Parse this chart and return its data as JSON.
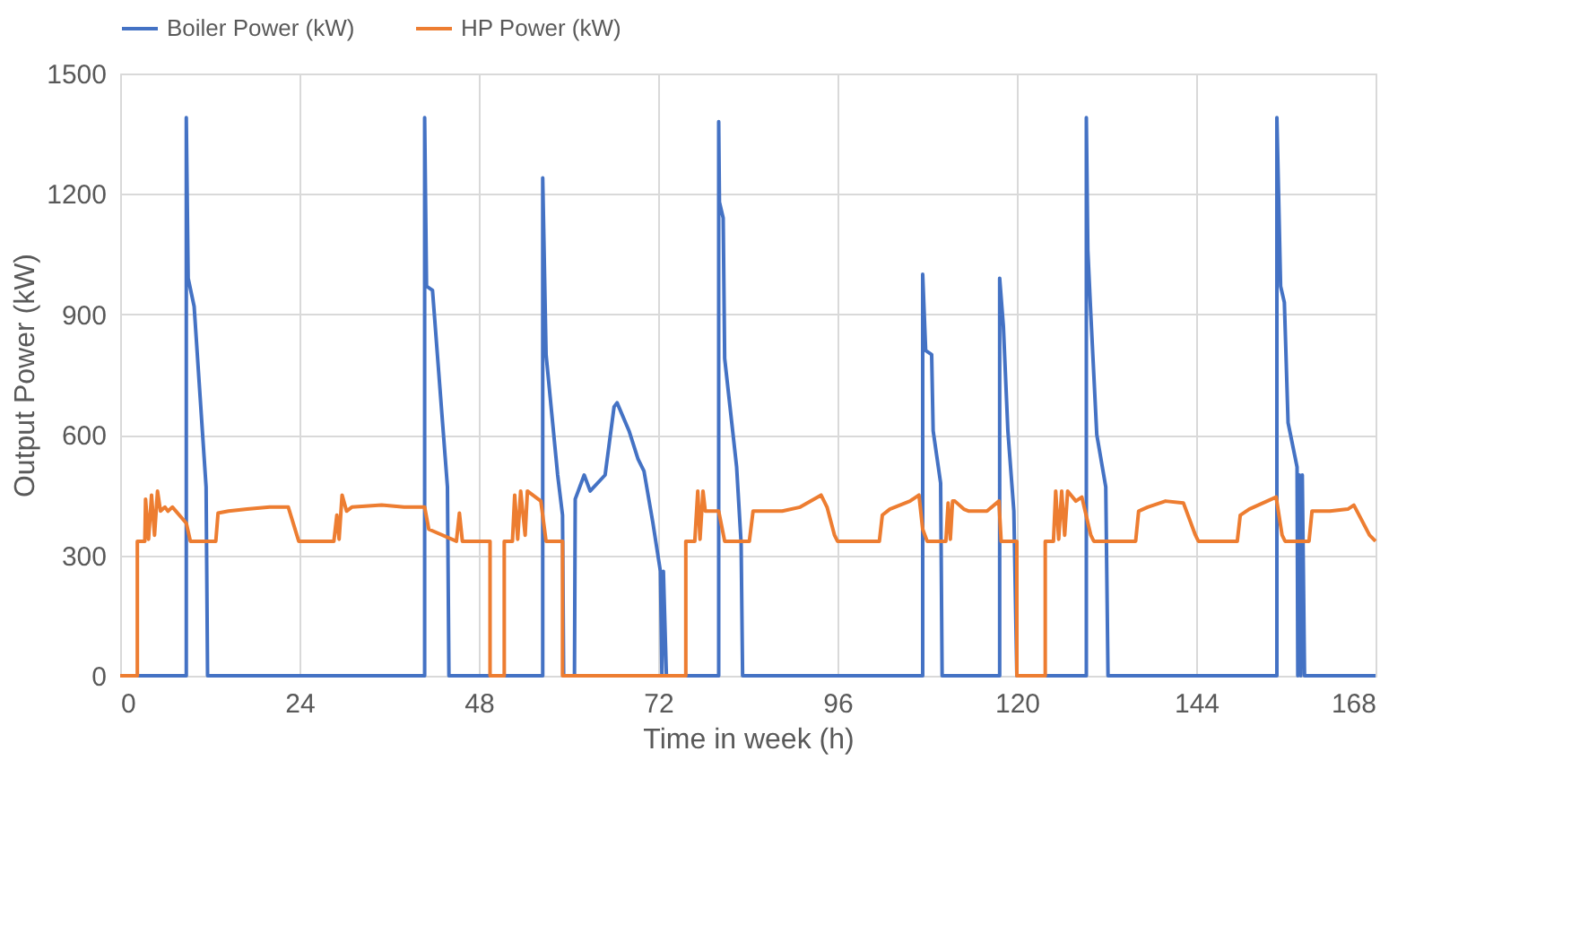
{
  "chart_data": {
    "type": "line",
    "xlabel": "Time in week (h)",
    "ylabel": "Output Power (kW)",
    "xlim": [
      0,
      168
    ],
    "xticks": [
      0,
      24,
      48,
      72,
      96,
      120,
      144,
      168
    ],
    "ylim": [
      0,
      1500
    ],
    "yticks": [
      0,
      300,
      600,
      900,
      1200,
      1500
    ],
    "grid": true,
    "legend": "top",
    "line_style": "solid",
    "marker": "none",
    "series": [
      {
        "name": "Boiler Power (kW)",
        "color": "#4472c4",
        "x": [
          0,
          8.85,
          8.85,
          9.1,
          9.9,
          11.5,
          11.7,
          40.75,
          40.75,
          41.0,
          41.8,
          43.8,
          44.0,
          56.55,
          56.55,
          57.0,
          58.55,
          59.2,
          59.35,
          60.8,
          60.9,
          62.1,
          62.9,
          64.9,
          66.1,
          66.5,
          68.1,
          69.3,
          70.1,
          71.3,
          72.3,
          72.5,
          72.7,
          73.1,
          80.1,
          80.1,
          80.2,
          80.7,
          80.9,
          82.5,
          83.1,
          83.3,
          107.4,
          107.4,
          107.8,
          108.6,
          108.8,
          109.8,
          110.0,
          117.7,
          117.7,
          118.2,
          118.8,
          119.6,
          120.0,
          129.3,
          129.3,
          129.5,
          129.9,
          130.7,
          131.9,
          132.2,
          154.8,
          154.8,
          155.3,
          155.8,
          156.3,
          157.5,
          157.6,
          157.8,
          158.0,
          158.2,
          158.5,
          168
        ],
        "values": [
          0,
          0,
          1390,
          990,
          920,
          470,
          0,
          0,
          1390,
          970,
          960,
          470,
          0,
          0,
          1240,
          800,
          500,
          400,
          0,
          0,
          440,
          500,
          460,
          500,
          670,
          680,
          610,
          540,
          510,
          380,
          260,
          0,
          260,
          0,
          0,
          1380,
          1180,
          1140,
          790,
          520,
          330,
          0,
          0,
          1000,
          810,
          800,
          610,
          480,
          0,
          0,
          990,
          870,
          610,
          410,
          0,
          0,
          1390,
          1060,
          900,
          600,
          470,
          0,
          0,
          1390,
          970,
          930,
          630,
          520,
          0,
          500,
          0,
          500,
          0,
          0
        ]
      },
      {
        "name": "HP Power (kW)",
        "color": "#ed7d31",
        "x": [
          0,
          2.3,
          2.3,
          3.3,
          3.4,
          3.8,
          4.2,
          4.6,
          5.0,
          5.4,
          6.0,
          6.4,
          7.0,
          8.85,
          9.4,
          12.8,
          13.1,
          14.5,
          17.0,
          20.0,
          22.5,
          23.9,
          28.6,
          29.0,
          29.3,
          29.7,
          30.3,
          31.0,
          35.0,
          38.0,
          40.75,
          41.3,
          45.0,
          45.4,
          45.8,
          49.5,
          49.5,
          51.4,
          51.4,
          52.5,
          52.8,
          53.2,
          53.6,
          54.2,
          54.5,
          56.3,
          57.0,
          59.2,
          59.2,
          75.7,
          75.7,
          76.9,
          77.3,
          77.6,
          78.0,
          78.3,
          80.1,
          80.9,
          84.2,
          84.7,
          88.6,
          91.0,
          93.8,
          94.6,
          95.6,
          96.0,
          101.6,
          102.0,
          103.0,
          105.7,
          106.9,
          107.4,
          108.0,
          110.5,
          110.8,
          111.1,
          111.4,
          111.7,
          112.9,
          113.6,
          116.0,
          117.6,
          117.9,
          120.0,
          120.0,
          123.8,
          123.8,
          124.9,
          125.2,
          125.6,
          126.0,
          126.4,
          126.8,
          127.9,
          128.7,
          129.9,
          130.3,
          135.9,
          136.3,
          137.5,
          139.9,
          142.3,
          143.9,
          144.3,
          149.5,
          149.9,
          151.1,
          153.5,
          154.7,
          155.5,
          155.9,
          159.1,
          159.5,
          161.9,
          164.3,
          165.1,
          167.2,
          168
        ],
        "values": [
          0,
          0,
          335,
          335,
          440,
          340,
          450,
          350,
          460,
          410,
          420,
          410,
          420,
          380,
          335,
          335,
          405,
          410,
          415,
          420,
          420,
          335,
          335,
          400,
          340,
          450,
          410,
          420,
          425,
          420,
          420,
          365,
          335,
          405,
          335,
          335,
          0,
          0,
          335,
          335,
          450,
          340,
          460,
          350,
          460,
          435,
          335,
          335,
          0,
          0,
          335,
          335,
          460,
          340,
          460,
          410,
          410,
          335,
          335,
          410,
          410,
          420,
          450,
          420,
          350,
          335,
          335,
          400,
          415,
          435,
          450,
          365,
          335,
          335,
          430,
          340,
          435,
          435,
          415,
          410,
          410,
          435,
          335,
          335,
          0,
          0,
          335,
          335,
          460,
          340,
          460,
          350,
          460,
          435,
          445,
          350,
          335,
          335,
          410,
          420,
          435,
          430,
          350,
          335,
          335,
          400,
          415,
          435,
          445,
          350,
          335,
          335,
          410,
          410,
          415,
          425,
          350,
          335
        ]
      }
    ]
  }
}
